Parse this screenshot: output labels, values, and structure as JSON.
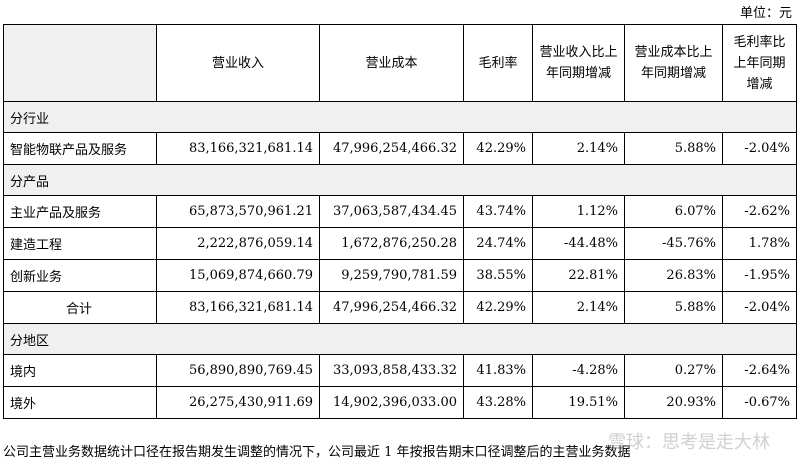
{
  "unit_label": "单位：元",
  "headers": [
    "",
    "营业收入",
    "营业成本",
    "毛利率",
    "营业收入比上年同期增减",
    "营业成本比上年同期增减",
    "毛利率比上年同期增减"
  ],
  "sections": [
    {
      "title": "分行业",
      "rows": [
        {
          "label": "智能物联产品及服务",
          "revenue": "83,166,321,681.14",
          "cost": "47,996,254,466.32",
          "margin": "42.29%",
          "rev_change": "2.14%",
          "cost_change": "5.88%",
          "margin_change": "-2.04%"
        }
      ]
    },
    {
      "title": "分产品",
      "rows": [
        {
          "label": "主业产品及服务",
          "revenue": "65,873,570,961.21",
          "cost": "37,063,587,434.45",
          "margin": "43.74%",
          "rev_change": "1.12%",
          "cost_change": "6.07%",
          "margin_change": "-2.62%"
        },
        {
          "label": "建造工程",
          "revenue": "2,222,876,059.14",
          "cost": "1,672,876,250.28",
          "margin": "24.74%",
          "rev_change": "-44.48%",
          "cost_change": "-45.76%",
          "margin_change": "1.78%"
        },
        {
          "label": "创新业务",
          "revenue": "15,069,874,660.79",
          "cost": "9,259,790,781.59",
          "margin": "38.55%",
          "rev_change": "22.81%",
          "cost_change": "26.83%",
          "margin_change": "-1.95%"
        },
        {
          "label": "合计",
          "revenue": "83,166,321,681.14",
          "cost": "47,996,254,466.32",
          "margin": "42.29%",
          "rev_change": "2.14%",
          "cost_change": "5.88%",
          "margin_change": "-2.04%"
        }
      ]
    },
    {
      "title": "分地区",
      "rows": [
        {
          "label": "境内",
          "revenue": "56,890,890,769.45",
          "cost": "33,093,858,433.32",
          "margin": "41.83%",
          "rev_change": "-4.28%",
          "cost_change": "0.27%",
          "margin_change": "-2.64%"
        },
        {
          "label": "境外",
          "revenue": "26,275,430,911.69",
          "cost": "14,902,396,033.00",
          "margin": "43.28%",
          "rev_change": "19.51%",
          "cost_change": "20.93%",
          "margin_change": "-0.67%"
        }
      ]
    }
  ],
  "note": "公司主营业务数据统计口径在报告期发生调整的情况下，公司最近 1 年按报告期末口径调整后的主营业务数据",
  "watermark": "雪球：思考是走大林"
}
